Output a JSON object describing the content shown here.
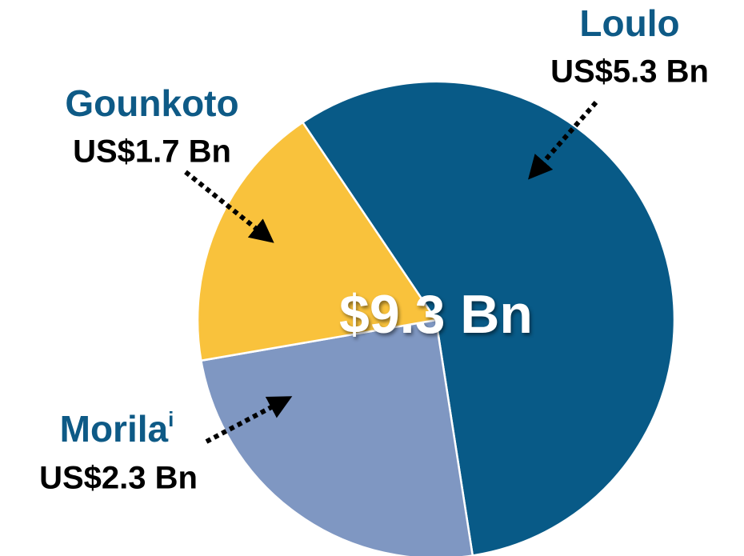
{
  "chart_data": {
    "type": "pie",
    "total_label": "$9.3 Bn",
    "categories": [
      "Loulo",
      "Morila",
      "Gounkoto"
    ],
    "footnote_marks": [
      null,
      "i",
      null
    ],
    "values": [
      5.3,
      2.3,
      1.7
    ],
    "value_labels": [
      "US$5.3 Bn",
      "US$2.3 Bn",
      "US$1.7 Bn"
    ],
    "colors": [
      "#085a87",
      "#7f97c2",
      "#f9c23c"
    ]
  }
}
